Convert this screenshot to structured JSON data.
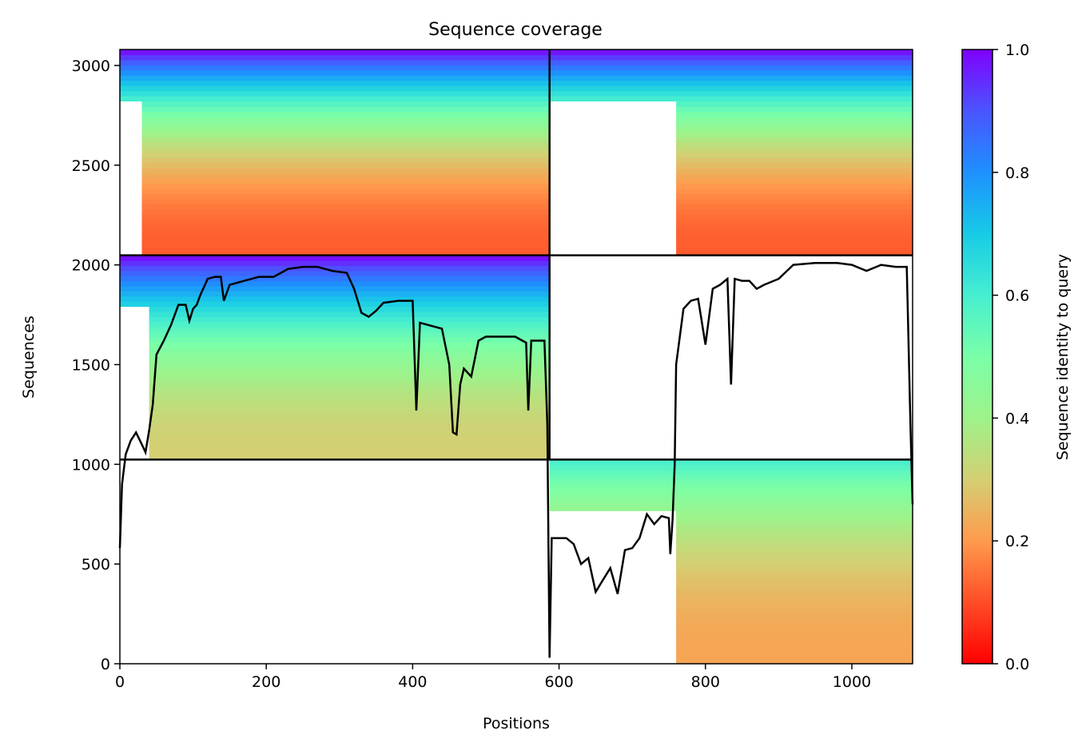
{
  "chart_data": {
    "type": "heatmap",
    "title": "Sequence coverage",
    "xlabel": "Positions",
    "ylabel": "Sequences",
    "xlim": [
      0,
      1083
    ],
    "ylim": [
      0,
      3080
    ],
    "xticks": [
      "0",
      "200",
      "400",
      "600",
      "800",
      "1000"
    ],
    "yticks": [
      "0",
      "500",
      "1000",
      "1500",
      "2000",
      "2500",
      "3000"
    ],
    "colorbar": {
      "label": "Sequence identity to query",
      "range": [
        0.0,
        1.0
      ],
      "ticks": [
        "0.0",
        "0.2",
        "0.4",
        "0.6",
        "0.8",
        "1.0"
      ],
      "colormap": "rainbow_r"
    },
    "blocks": [
      {
        "x": [
          0,
          587
        ],
        "y": [
          2048,
          3080
        ],
        "empty_before": 30,
        "identity_low": 0.12,
        "identity_high": 1.0
      },
      {
        "x": [
          587,
          1083
        ],
        "y": [
          2048,
          3080
        ],
        "empty_before": 760,
        "identity_low": 0.12,
        "identity_high": 1.0
      },
      {
        "x": [
          0,
          587
        ],
        "y": [
          1024,
          2048
        ],
        "empty_before": 40,
        "identity_low": 0.3,
        "identity_high": 1.0
      },
      {
        "x": [
          587,
          1083
        ],
        "y": [
          0,
          1024
        ],
        "empty_before": 760,
        "identity_low": 0.22,
        "identity_high": 0.6
      }
    ],
    "separators": {
      "vertical_x": 587,
      "horizontal_y": [
        1024,
        2048
      ]
    },
    "coverage_line": {
      "name": "coverage",
      "x": [
        0,
        3,
        8,
        15,
        22,
        30,
        35,
        40,
        45,
        50,
        60,
        70,
        80,
        90,
        95,
        100,
        105,
        110,
        120,
        130,
        138,
        142,
        150,
        170,
        190,
        210,
        230,
        250,
        270,
        290,
        310,
        320,
        330,
        340,
        350,
        360,
        380,
        400,
        405,
        410,
        420,
        440,
        450,
        455,
        460,
        465,
        470,
        480,
        490,
        500,
        520,
        540,
        555,
        558,
        562,
        570,
        580,
        584,
        586,
        587,
        590,
        610,
        620,
        630,
        640,
        650,
        660,
        670,
        680,
        690,
        700,
        710,
        720,
        730,
        740,
        750,
        752,
        755,
        758,
        760,
        770,
        780,
        790,
        800,
        810,
        820,
        830,
        835,
        840,
        850,
        860,
        870,
        880,
        900,
        920,
        950,
        980,
        1000,
        1020,
        1040,
        1060,
        1075,
        1080,
        1083
      ],
      "y": [
        580,
        900,
        1050,
        1120,
        1160,
        1100,
        1060,
        1170,
        1300,
        1550,
        1620,
        1700,
        1800,
        1800,
        1720,
        1780,
        1800,
        1850,
        1930,
        1940,
        1940,
        1820,
        1900,
        1920,
        1940,
        1940,
        1980,
        1990,
        1990,
        1970,
        1960,
        1880,
        1760,
        1740,
        1770,
        1810,
        1820,
        1820,
        1270,
        1710,
        1700,
        1680,
        1500,
        1160,
        1150,
        1400,
        1480,
        1440,
        1620,
        1640,
        1640,
        1640,
        1610,
        1270,
        1620,
        1620,
        1620,
        1200,
        400,
        30,
        630,
        630,
        600,
        500,
        530,
        360,
        420,
        480,
        350,
        570,
        580,
        630,
        750,
        700,
        740,
        730,
        550,
        720,
        1000,
        1500,
        1780,
        1820,
        1830,
        1600,
        1880,
        1900,
        1930,
        1400,
        1930,
        1920,
        1920,
        1880,
        1900,
        1930,
        2000,
        2010,
        2010,
        2000,
        1970,
        2000,
        1990,
        1990,
        1200,
        800
      ]
    }
  }
}
